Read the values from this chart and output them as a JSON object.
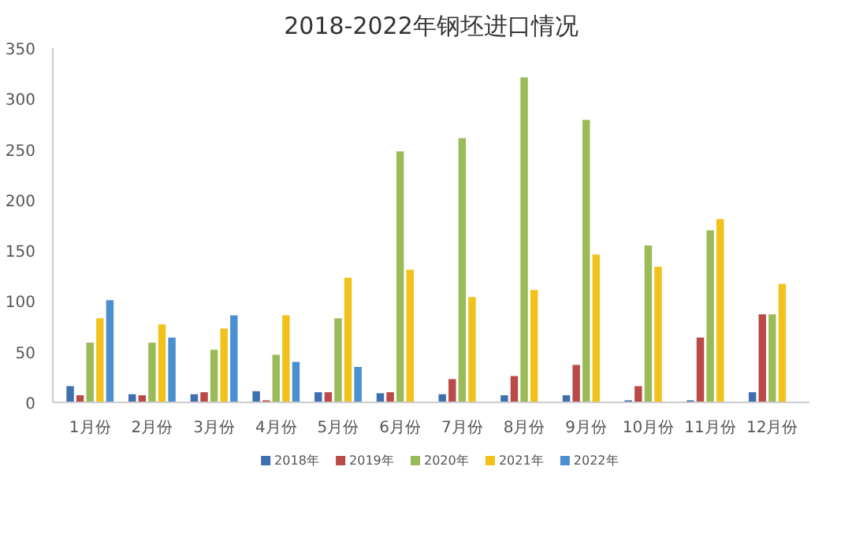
{
  "chart_data": {
    "type": "bar",
    "title": "2018-2022年钢坯进口情况",
    "categories": [
      "1月份",
      "2月份",
      "3月份",
      "4月份",
      "5月份",
      "6月份",
      "7月份",
      "8月份",
      "9月份",
      "10月份",
      "11月份",
      "12月份"
    ],
    "series": [
      {
        "name": "2018年",
        "color": "#3e6fae",
        "values": [
          16,
          8,
          8,
          11,
          10,
          9,
          8,
          7,
          7,
          2,
          2,
          10
        ]
      },
      {
        "name": "2019年",
        "color": "#b94a48",
        "values": [
          7,
          7,
          10,
          2,
          10,
          10,
          23,
          26,
          37,
          16,
          64,
          87
        ]
      },
      {
        "name": "2020年",
        "color": "#9bbb59",
        "values": [
          59,
          59,
          52,
          47,
          83,
          248,
          261,
          321,
          279,
          155,
          170,
          87
        ]
      },
      {
        "name": "2021年",
        "color": "#f2c21b",
        "values": [
          83,
          77,
          73,
          86,
          123,
          131,
          104,
          111,
          146,
          134,
          181,
          117
        ]
      },
      {
        "name": "2022年",
        "color": "#4a8fd0",
        "values": [
          101,
          64,
          86,
          40,
          35,
          null,
          null,
          null,
          null,
          null,
          null,
          null
        ]
      }
    ],
    "ylim": [
      0,
      350
    ],
    "yticks": [
      0,
      50,
      100,
      150,
      200,
      250,
      300,
      350
    ],
    "grid": false,
    "legend": "bottom"
  }
}
